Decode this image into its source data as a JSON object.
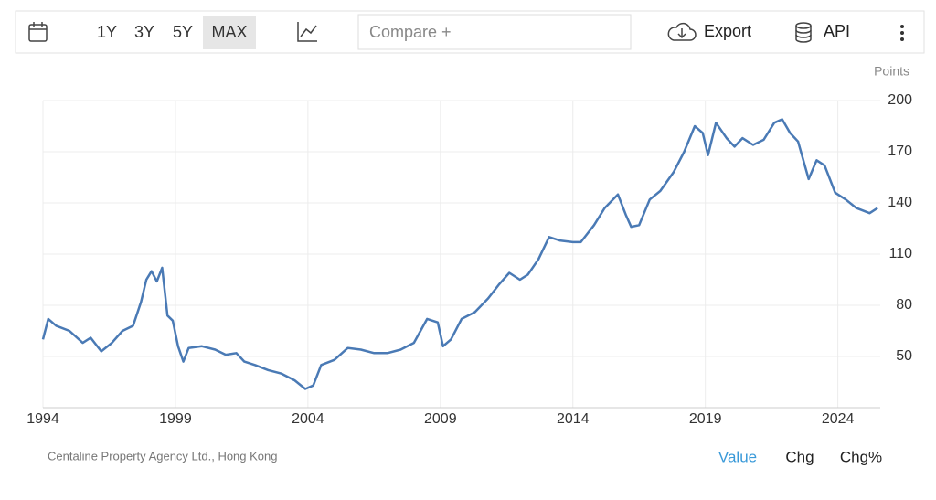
{
  "toolbar": {
    "ranges": [
      "1Y",
      "3Y",
      "5Y",
      "MAX"
    ],
    "compare": "Compare +",
    "export": "Export",
    "api": "API"
  },
  "chart_data": {
    "type": "line",
    "unit": "Points",
    "x": [
      1994.0,
      1994.2,
      1994.5,
      1995.0,
      1995.5,
      1995.8,
      1996.2,
      1996.6,
      1997.0,
      1997.4,
      1997.7,
      1997.9,
      1998.1,
      1998.3,
      1998.5,
      1998.7,
      1998.9,
      1999.1,
      1999.3,
      1999.5,
      2000.0,
      2000.5,
      2000.9,
      2001.3,
      2001.6,
      2002.0,
      2002.5,
      2003.0,
      2003.5,
      2003.9,
      2004.2,
      2004.5,
      2005.0,
      2005.5,
      2006.0,
      2006.5,
      2007.0,
      2007.5,
      2008.0,
      2008.5,
      2008.9,
      2009.1,
      2009.4,
      2009.8,
      2010.3,
      2010.8,
      2011.2,
      2011.6,
      2012.0,
      2012.3,
      2012.7,
      2013.1,
      2013.5,
      2014.0,
      2014.3,
      2014.8,
      2015.2,
      2015.7,
      2016.0,
      2016.2,
      2016.5,
      2016.9,
      2017.3,
      2017.8,
      2018.2,
      2018.6,
      2018.9,
      2019.1,
      2019.4,
      2019.8,
      2020.1,
      2020.4,
      2020.8,
      2021.2,
      2021.6,
      2021.9,
      2022.2,
      2022.5,
      2022.9,
      2023.2,
      2023.5,
      2023.9,
      2024.3,
      2024.7,
      2025.2,
      2025.5
    ],
    "series": [
      {
        "color": "#4a7ab5",
        "values": [
          60,
          72,
          68,
          65,
          58,
          61,
          53,
          58,
          65,
          68,
          82,
          95,
          100,
          94,
          102,
          74,
          71,
          56,
          47,
          55,
          56,
          54,
          51,
          52,
          47,
          45,
          42,
          40,
          36,
          31,
          33,
          45,
          48,
          55,
          54,
          52,
          52,
          54,
          58,
          72,
          70,
          56,
          60,
          72,
          76,
          84,
          92,
          99,
          95,
          98,
          107,
          120,
          118,
          117,
          117,
          127,
          137,
          145,
          133,
          126,
          127,
          142,
          147,
          158,
          170,
          185,
          181,
          168,
          187,
          178,
          173,
          178,
          174,
          177,
          187,
          189,
          181,
          176,
          154,
          165,
          162,
          146,
          142,
          137,
          134,
          137
        ]
      }
    ],
    "xlim": [
      1994,
      2025.6
    ],
    "xticks": [
      1994,
      1999,
      2004,
      2009,
      2014,
      2019,
      2024
    ],
    "ylim": [
      20,
      200
    ],
    "yticks": [
      50,
      80,
      110,
      140,
      170,
      200
    ],
    "grid": true
  },
  "footer": {
    "source": "Centaline Property Agency Ltd., Hong Kong",
    "modes": [
      "Value",
      "Chg",
      "Chg%"
    ]
  }
}
